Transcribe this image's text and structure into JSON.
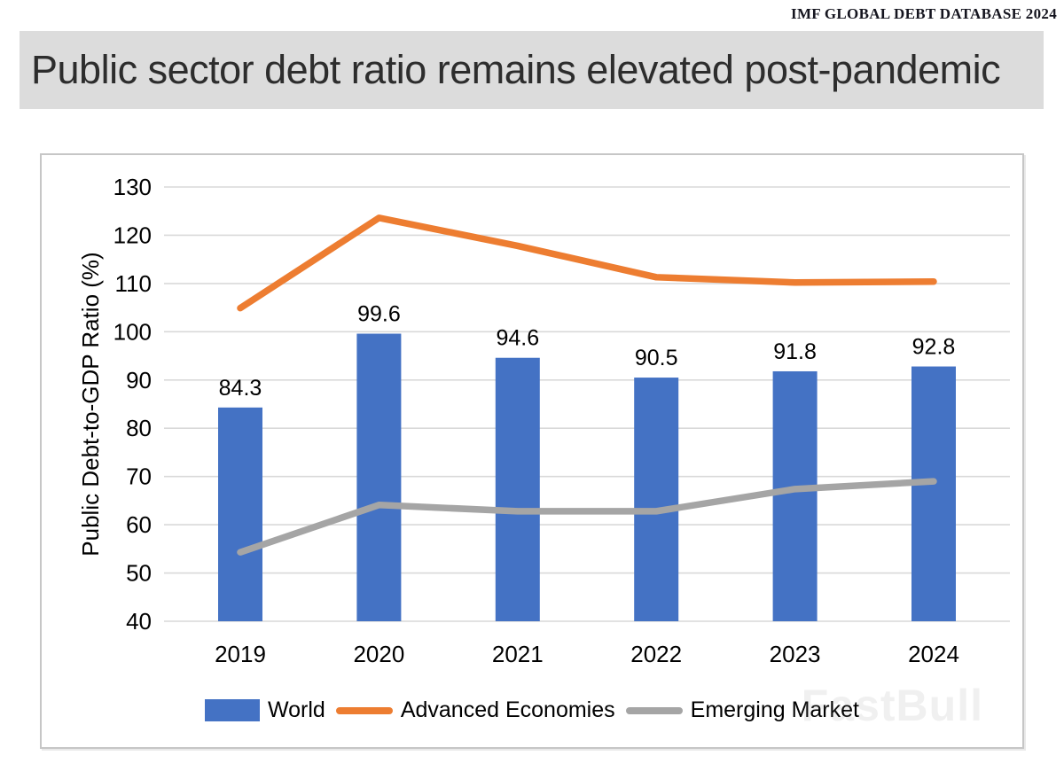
{
  "source": "IMF GLOBAL DEBT DATABASE 2024",
  "title": "Public sector debt ratio remains elevated post-pandemic",
  "watermark": "FastBull",
  "chart_data": {
    "type": "bar",
    "title": "",
    "categories": [
      "2019",
      "2020",
      "2021",
      "2022",
      "2023",
      "2024"
    ],
    "series": [
      {
        "name": "World",
        "type": "bar",
        "color": "#4472C4",
        "values": [
          84.3,
          99.6,
          94.6,
          90.5,
          91.8,
          92.8
        ],
        "data_labels": [
          "84.3",
          "99.6",
          "94.6",
          "90.5",
          "91.8",
          "92.8"
        ]
      },
      {
        "name": "Advanced Economies",
        "type": "line",
        "color": "#ED7D31",
        "values": [
          104.9,
          123.6,
          117.8,
          111.3,
          110.2,
          110.4
        ]
      },
      {
        "name": "Emerging Market",
        "type": "line",
        "color": "#A5A5A5",
        "values": [
          54.3,
          64.1,
          62.8,
          62.8,
          67.4,
          69.0
        ]
      }
    ],
    "xlabel": "",
    "ylabel": "Public Debt-to-GDP Ratio (%)",
    "ylim": [
      40,
      130
    ],
    "yticks": [
      40,
      50,
      60,
      70,
      80,
      90,
      100,
      110,
      120,
      130
    ],
    "grid": true,
    "gridline_color": "#d9d9d9",
    "legend_position": "bottom",
    "text_color": "#000000"
  }
}
